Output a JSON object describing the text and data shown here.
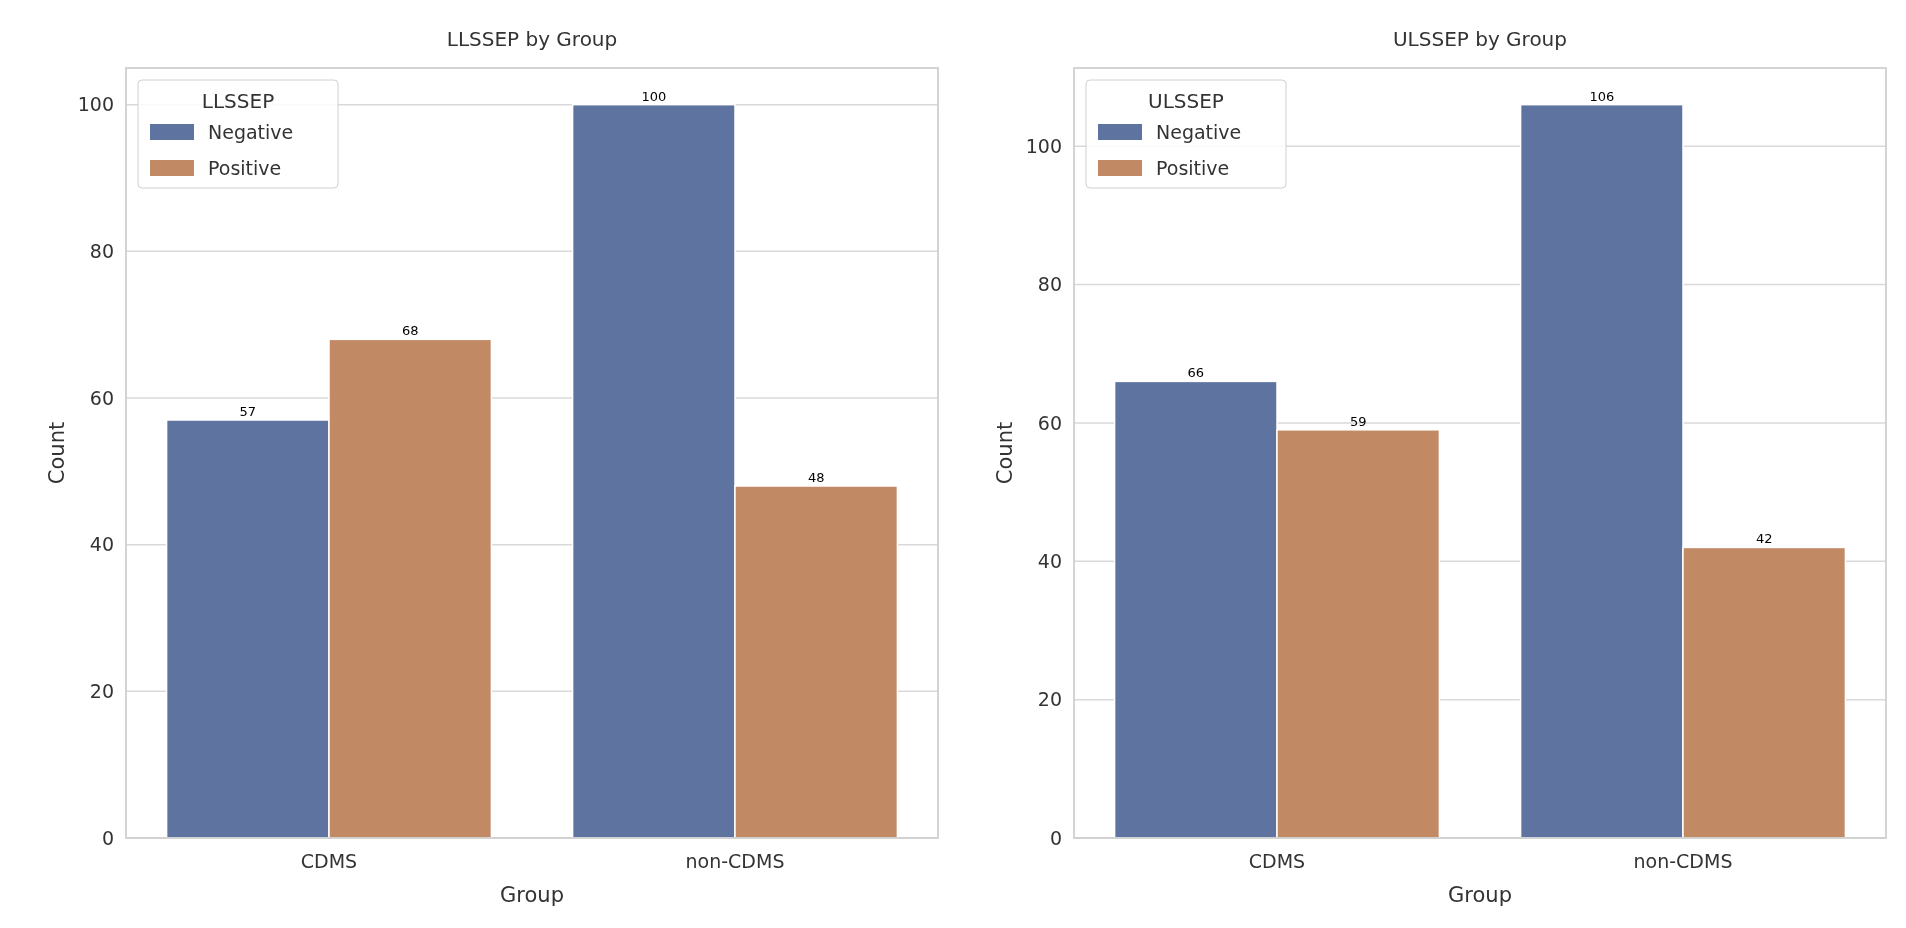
{
  "chart_data": [
    {
      "type": "bar",
      "title": "LLSSEP by Group",
      "xlabel": "Group",
      "ylabel": "Count",
      "legend_title": "LLSSEP",
      "categories": [
        "CDMS",
        "non-CDMS"
      ],
      "series": [
        {
          "name": "Negative",
          "color": "#5f73a0",
          "values": [
            57,
            100
          ]
        },
        {
          "name": "Positive",
          "color": "#c18a65",
          "values": [
            68,
            48
          ]
        }
      ],
      "ylim": [
        0,
        105
      ],
      "yticks": [
        0,
        20,
        40,
        60,
        80,
        100
      ],
      "grid": "y",
      "legend": "top left",
      "data_labels": true
    },
    {
      "type": "bar",
      "title": "ULSSEP by Group",
      "xlabel": "Group",
      "ylabel": "Count",
      "legend_title": "ULSSEP",
      "categories": [
        "CDMS",
        "non-CDMS"
      ],
      "series": [
        {
          "name": "Negative",
          "color": "#5f73a0",
          "values": [
            66,
            106
          ]
        },
        {
          "name": "Positive",
          "color": "#c18a65",
          "values": [
            59,
            42
          ]
        }
      ],
      "ylim": [
        0,
        111.3
      ],
      "yticks": [
        0,
        20,
        40,
        60,
        80,
        100
      ],
      "grid": "y",
      "legend": "top left",
      "data_labels": true
    }
  ]
}
